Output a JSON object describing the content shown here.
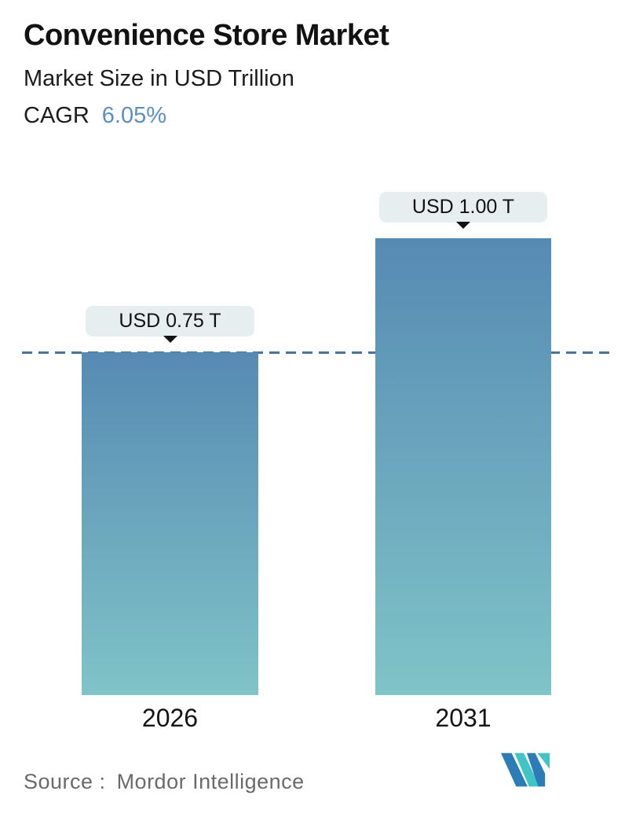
{
  "header": {
    "title": "Convenience Store Market",
    "subtitle": "Market Size in USD Trillion",
    "cagr_label": "CAGR",
    "cagr_value": "6.05%"
  },
  "chart_data": {
    "type": "bar",
    "categories": [
      "2026",
      "2031"
    ],
    "values": [
      0.75,
      1.0
    ],
    "value_labels": [
      "USD 0.75 T",
      "USD 1.00 T"
    ],
    "title": "Convenience Store Market",
    "subtitle": "Market Size in USD Trillion",
    "unit": "USD Trillion",
    "xlabel": "",
    "ylabel": "",
    "ylim": [
      0,
      1.12
    ],
    "grid": false,
    "legend": "none",
    "dashed_reference_level": 0.75,
    "colors": {
      "bar_gradient_top": "#578ab3",
      "bar_gradient_bottom": "#7fc4c8",
      "dashed_line": "#47759f",
      "tooltip_bg": "#e7eef0",
      "cagr_accent": "#5a8fc2"
    }
  },
  "footer": {
    "source_label": "Source :",
    "source_value": "Mordor Intelligence",
    "logo": {
      "name": "mordor-intelligence-logo",
      "blue": "#2b7cb7",
      "teal": "#41c4c6"
    }
  }
}
